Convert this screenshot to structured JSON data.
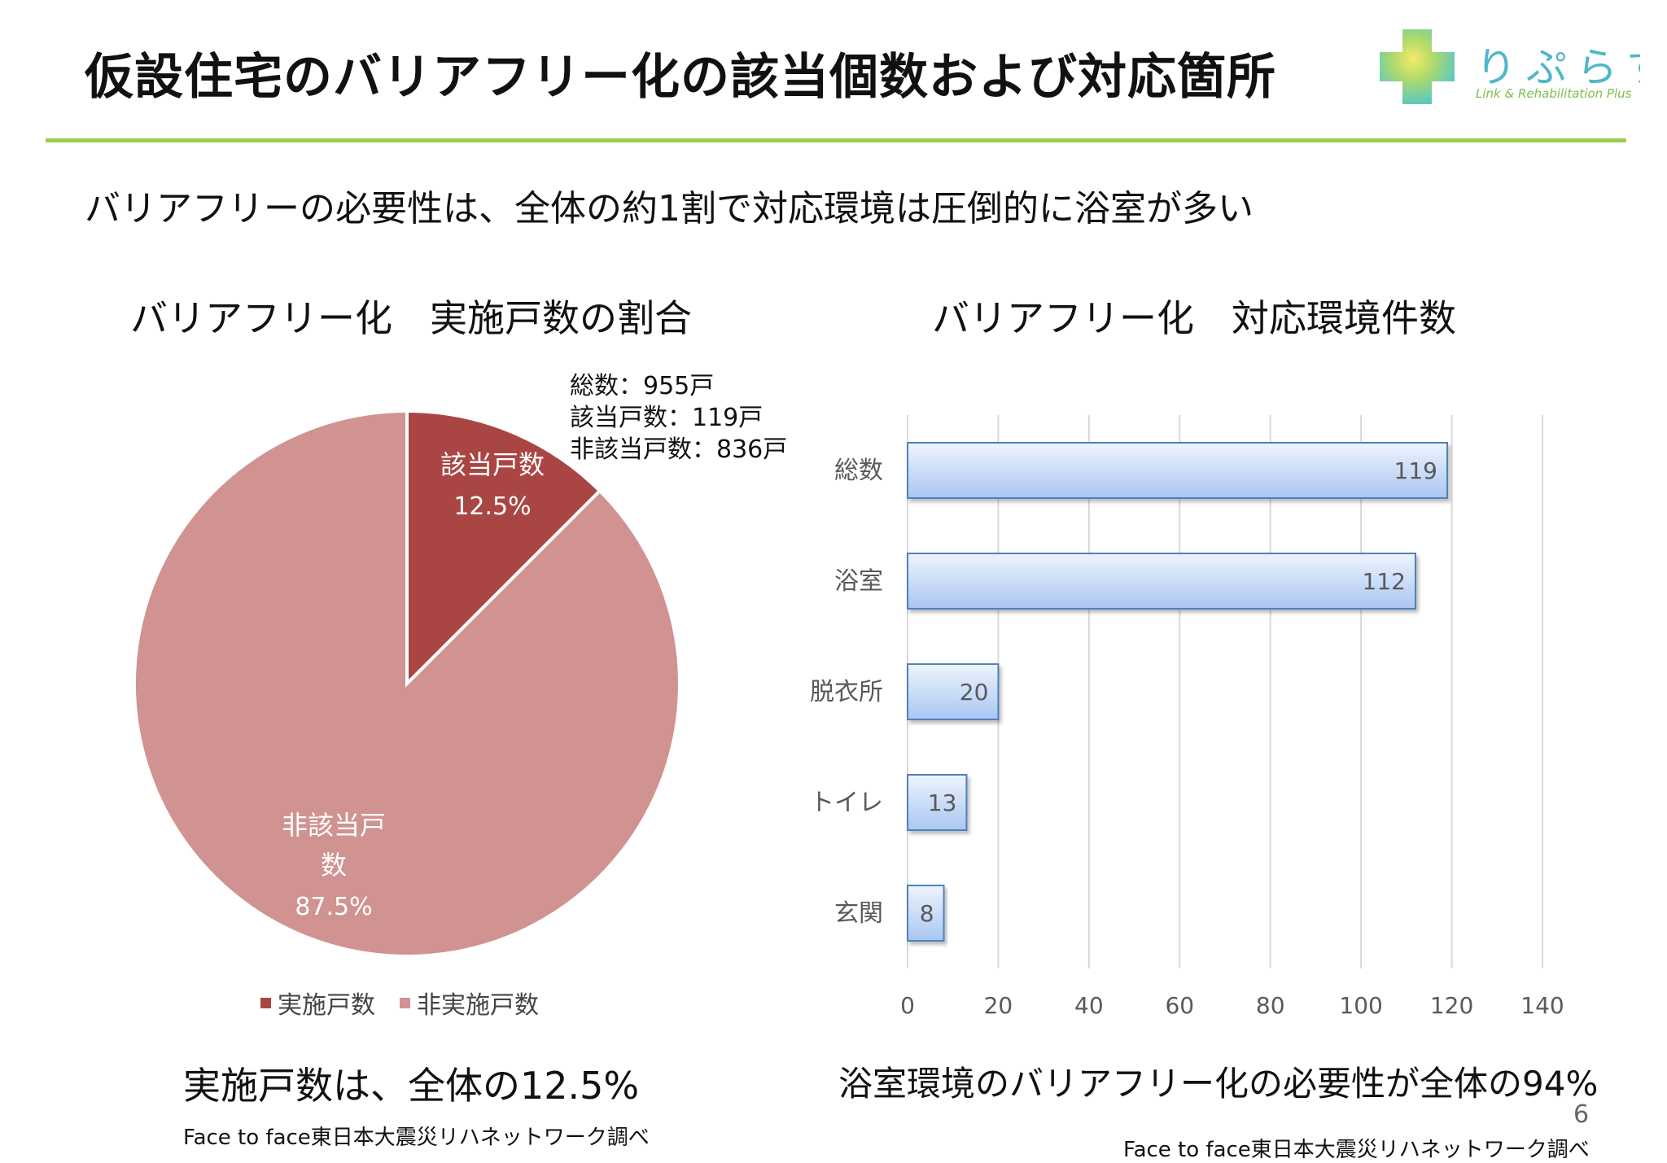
{
  "slide": {
    "title": "仮設住宅のバリアフリー化の該当個数および対応箇所",
    "subtitle": "バリアフリーの必要性は、全体の約1割で対応環境は圧倒的に浴室が多い",
    "logo_text": "りぷらす",
    "logo_tagline": "Link & Rehabilitation Plus",
    "page_number": "6",
    "accent_color": "#9ccf4f"
  },
  "chart_data": [
    {
      "type": "pie",
      "title": "バリアフリー化　実施戸数の割合",
      "slices": [
        {
          "label": "該当戸数",
          "value": 12.5,
          "display": "12.5%",
          "color": "#a94643"
        },
        {
          "label": "非該当戸数",
          "value": 87.5,
          "display": "87.5%",
          "color": "#d09391"
        }
      ],
      "legend": [
        "実施戸数",
        "非実施戸数"
      ],
      "legend_placement": "bottom",
      "notes": [
        "総数：955戸",
        "該当戸数：119戸",
        "非該当戸数：836戸"
      ],
      "conclusion": "実施戸数は、全体の12.5%",
      "source": "Face to face東日本大震災リハネットワーク調べ"
    },
    {
      "type": "bar",
      "orientation": "horizontal",
      "title": "バリアフリー化　対応環境件数",
      "categories": [
        "総数",
        "浴室",
        "脱衣所",
        "トイレ",
        "玄関"
      ],
      "values": [
        119,
        112,
        20,
        13,
        8
      ],
      "xlim": [
        0,
        140
      ],
      "xticks": [
        0,
        20,
        40,
        60,
        80,
        100,
        120,
        140
      ],
      "grid": true,
      "bar_color": "#c5d9f7",
      "bar_border": "#4f81bd",
      "conclusion": "浴室環境のバリアフリー化の必要性が全体の94%",
      "source": "Face to face東日本大震災リハネットワーク調べ"
    }
  ]
}
